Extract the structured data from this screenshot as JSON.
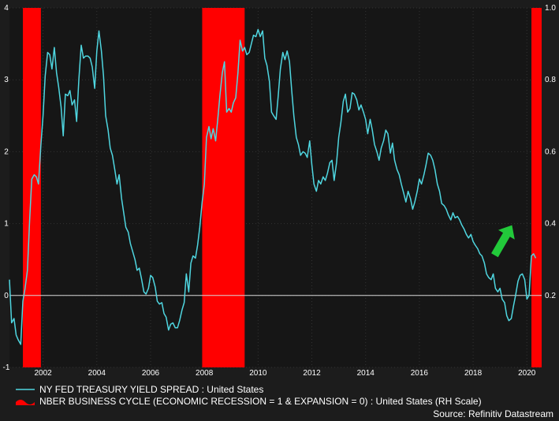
{
  "chart_data": {
    "type": "line",
    "x_range": [
      2000.75,
      2020.55
    ],
    "left_axis": {
      "ylim": [
        -1,
        4
      ],
      "ticks": [
        -1,
        0,
        1,
        2,
        3,
        4
      ],
      "tick_labels": [
        "-1",
        "0",
        "1",
        "2",
        "3",
        "4"
      ]
    },
    "right_axis": {
      "ylim": [
        0,
        1
      ],
      "ticks": [
        0.2,
        0.4,
        0.6,
        0.8,
        1.0
      ],
      "tick_labels": [
        "0.2",
        "0.4",
        "0.6",
        "0.8",
        "1.0"
      ]
    },
    "x_ticks": [
      2002,
      2004,
      2006,
      2008,
      2010,
      2012,
      2014,
      2016,
      2018,
      2020
    ],
    "x_tick_labels": [
      "2002",
      "2004",
      "2006",
      "2008",
      "2010",
      "2012",
      "2014",
      "2016",
      "2018",
      "2020"
    ],
    "zero_line": true,
    "grid": true,
    "series": [
      {
        "name": "NY FED TREASURY YIELD SPREAD : United States",
        "axis": "left",
        "color": "#4fd6e0",
        "points": [
          [
            2000.75,
            0.22
          ],
          [
            2000.83,
            -0.38
          ],
          [
            2000.92,
            -0.32
          ],
          [
            2001.0,
            -0.55
          ],
          [
            2001.08,
            -0.62
          ],
          [
            2001.17,
            -0.68
          ],
          [
            2001.25,
            -0.08
          ],
          [
            2001.33,
            0.1
          ],
          [
            2001.42,
            0.35
          ],
          [
            2001.5,
            1.05
          ],
          [
            2001.58,
            1.62
          ],
          [
            2001.67,
            1.68
          ],
          [
            2001.75,
            1.65
          ],
          [
            2001.83,
            1.55
          ],
          [
            2001.92,
            2.1
          ],
          [
            2002.0,
            2.5
          ],
          [
            2002.08,
            3.05
          ],
          [
            2002.17,
            3.38
          ],
          [
            2002.25,
            3.35
          ],
          [
            2002.33,
            3.15
          ],
          [
            2002.42,
            3.45
          ],
          [
            2002.5,
            3.1
          ],
          [
            2002.58,
            2.9
          ],
          [
            2002.67,
            2.62
          ],
          [
            2002.75,
            2.22
          ],
          [
            2002.83,
            2.8
          ],
          [
            2002.92,
            2.78
          ],
          [
            2003.0,
            2.85
          ],
          [
            2003.08,
            2.65
          ],
          [
            2003.17,
            2.72
          ],
          [
            2003.25,
            2.42
          ],
          [
            2003.33,
            3.0
          ],
          [
            2003.42,
            3.48
          ],
          [
            2003.5,
            3.3
          ],
          [
            2003.58,
            3.33
          ],
          [
            2003.67,
            3.33
          ],
          [
            2003.75,
            3.3
          ],
          [
            2003.83,
            3.18
          ],
          [
            2003.92,
            2.88
          ],
          [
            2004.0,
            3.4
          ],
          [
            2004.08,
            3.68
          ],
          [
            2004.17,
            3.4
          ],
          [
            2004.25,
            3.05
          ],
          [
            2004.33,
            2.5
          ],
          [
            2004.42,
            2.3
          ],
          [
            2004.5,
            2.05
          ],
          [
            2004.58,
            1.95
          ],
          [
            2004.67,
            1.75
          ],
          [
            2004.75,
            1.55
          ],
          [
            2004.83,
            1.68
          ],
          [
            2004.92,
            1.35
          ],
          [
            2005.0,
            1.15
          ],
          [
            2005.08,
            0.95
          ],
          [
            2005.17,
            0.88
          ],
          [
            2005.25,
            0.72
          ],
          [
            2005.33,
            0.62
          ],
          [
            2005.42,
            0.5
          ],
          [
            2005.5,
            0.35
          ],
          [
            2005.58,
            0.38
          ],
          [
            2005.67,
            0.22
          ],
          [
            2005.75,
            0.05
          ],
          [
            2005.83,
            0.02
          ],
          [
            2005.92,
            0.1
          ],
          [
            2006.0,
            0.28
          ],
          [
            2006.08,
            0.25
          ],
          [
            2006.17,
            0.12
          ],
          [
            2006.25,
            -0.08
          ],
          [
            2006.33,
            -0.12
          ],
          [
            2006.42,
            -0.1
          ],
          [
            2006.5,
            -0.25
          ],
          [
            2006.58,
            -0.3
          ],
          [
            2006.67,
            -0.48
          ],
          [
            2006.75,
            -0.4
          ],
          [
            2006.83,
            -0.38
          ],
          [
            2006.92,
            -0.45
          ],
          [
            2007.0,
            -0.45
          ],
          [
            2007.08,
            -0.35
          ],
          [
            2007.17,
            -0.2
          ],
          [
            2007.25,
            -0.1
          ],
          [
            2007.33,
            0.3
          ],
          [
            2007.42,
            0.05
          ],
          [
            2007.5,
            0.45
          ],
          [
            2007.58,
            0.55
          ],
          [
            2007.67,
            0.52
          ],
          [
            2007.75,
            0.7
          ],
          [
            2007.83,
            0.95
          ],
          [
            2007.92,
            1.3
          ],
          [
            2008.0,
            1.55
          ],
          [
            2008.08,
            2.2
          ],
          [
            2008.17,
            2.35
          ],
          [
            2008.25,
            2.18
          ],
          [
            2008.33,
            2.32
          ],
          [
            2008.42,
            2.15
          ],
          [
            2008.5,
            2.45
          ],
          [
            2008.58,
            2.78
          ],
          [
            2008.67,
            3.1
          ],
          [
            2008.75,
            3.25
          ],
          [
            2008.83,
            2.55
          ],
          [
            2008.92,
            2.6
          ],
          [
            2009.0,
            2.55
          ],
          [
            2009.08,
            2.68
          ],
          [
            2009.17,
            2.75
          ],
          [
            2009.25,
            3.1
          ],
          [
            2009.33,
            3.55
          ],
          [
            2009.42,
            3.4
          ],
          [
            2009.5,
            3.45
          ],
          [
            2009.58,
            3.35
          ],
          [
            2009.67,
            3.38
          ],
          [
            2009.75,
            3.5
          ],
          [
            2009.83,
            3.62
          ],
          [
            2009.92,
            3.6
          ],
          [
            2010.0,
            3.7
          ],
          [
            2010.08,
            3.6
          ],
          [
            2010.17,
            3.68
          ],
          [
            2010.25,
            3.3
          ],
          [
            2010.33,
            3.2
          ],
          [
            2010.42,
            2.98
          ],
          [
            2010.5,
            2.55
          ],
          [
            2010.58,
            2.5
          ],
          [
            2010.67,
            2.45
          ],
          [
            2010.75,
            2.78
          ],
          [
            2010.83,
            3.15
          ],
          [
            2010.92,
            3.38
          ],
          [
            2011.0,
            3.28
          ],
          [
            2011.08,
            3.4
          ],
          [
            2011.17,
            3.25
          ],
          [
            2011.25,
            2.85
          ],
          [
            2011.33,
            2.5
          ],
          [
            2011.42,
            2.2
          ],
          [
            2011.5,
            2.1
          ],
          [
            2011.58,
            1.95
          ],
          [
            2011.67,
            2.0
          ],
          [
            2011.75,
            1.98
          ],
          [
            2011.83,
            1.92
          ],
          [
            2011.92,
            2.15
          ],
          [
            2012.0,
            1.82
          ],
          [
            2012.08,
            1.55
          ],
          [
            2012.17,
            1.45
          ],
          [
            2012.25,
            1.6
          ],
          [
            2012.33,
            1.55
          ],
          [
            2012.42,
            1.65
          ],
          [
            2012.5,
            1.6
          ],
          [
            2012.58,
            1.7
          ],
          [
            2012.67,
            1.85
          ],
          [
            2012.75,
            1.88
          ],
          [
            2012.83,
            1.6
          ],
          [
            2012.92,
            1.85
          ],
          [
            2013.0,
            2.2
          ],
          [
            2013.08,
            2.4
          ],
          [
            2013.17,
            2.7
          ],
          [
            2013.25,
            2.8
          ],
          [
            2013.33,
            2.55
          ],
          [
            2013.42,
            2.6
          ],
          [
            2013.5,
            2.82
          ],
          [
            2013.58,
            2.8
          ],
          [
            2013.67,
            2.72
          ],
          [
            2013.75,
            2.58
          ],
          [
            2013.83,
            2.65
          ],
          [
            2013.92,
            2.55
          ],
          [
            2014.0,
            2.45
          ],
          [
            2014.08,
            2.25
          ],
          [
            2014.17,
            2.45
          ],
          [
            2014.25,
            2.3
          ],
          [
            2014.33,
            2.1
          ],
          [
            2014.42,
            2.0
          ],
          [
            2014.5,
            1.88
          ],
          [
            2014.58,
            2.05
          ],
          [
            2014.67,
            2.15
          ],
          [
            2014.75,
            2.3
          ],
          [
            2014.83,
            2.25
          ],
          [
            2014.92,
            1.98
          ],
          [
            2015.0,
            2.12
          ],
          [
            2015.08,
            1.88
          ],
          [
            2015.17,
            1.75
          ],
          [
            2015.25,
            1.68
          ],
          [
            2015.33,
            1.55
          ],
          [
            2015.42,
            1.42
          ],
          [
            2015.5,
            1.3
          ],
          [
            2015.58,
            1.45
          ],
          [
            2015.67,
            1.35
          ],
          [
            2015.75,
            1.2
          ],
          [
            2015.83,
            1.3
          ],
          [
            2015.92,
            1.45
          ],
          [
            2016.0,
            1.62
          ],
          [
            2016.08,
            1.55
          ],
          [
            2016.17,
            1.68
          ],
          [
            2016.25,
            1.82
          ],
          [
            2016.33,
            1.98
          ],
          [
            2016.42,
            1.95
          ],
          [
            2016.5,
            1.88
          ],
          [
            2016.58,
            1.75
          ],
          [
            2016.67,
            1.55
          ],
          [
            2016.75,
            1.45
          ],
          [
            2016.83,
            1.28
          ],
          [
            2016.92,
            1.25
          ],
          [
            2017.0,
            1.2
          ],
          [
            2017.08,
            1.12
          ],
          [
            2017.17,
            1.05
          ],
          [
            2017.25,
            1.15
          ],
          [
            2017.33,
            1.08
          ],
          [
            2017.42,
            1.1
          ],
          [
            2017.5,
            1.05
          ],
          [
            2017.58,
            0.98
          ],
          [
            2017.67,
            0.92
          ],
          [
            2017.75,
            0.85
          ],
          [
            2017.83,
            0.8
          ],
          [
            2017.92,
            0.85
          ],
          [
            2018.0,
            0.75
          ],
          [
            2018.08,
            0.7
          ],
          [
            2018.17,
            0.65
          ],
          [
            2018.25,
            0.58
          ],
          [
            2018.33,
            0.55
          ],
          [
            2018.42,
            0.45
          ],
          [
            2018.5,
            0.3
          ],
          [
            2018.58,
            0.25
          ],
          [
            2018.67,
            0.22
          ],
          [
            2018.75,
            0.3
          ],
          [
            2018.83,
            0.1
          ],
          [
            2018.92,
            0.05
          ],
          [
            2019.0,
            0.1
          ],
          [
            2019.08,
            -0.05
          ],
          [
            2019.17,
            -0.1
          ],
          [
            2019.25,
            -0.28
          ],
          [
            2019.33,
            -0.35
          ],
          [
            2019.42,
            -0.32
          ],
          [
            2019.5,
            -0.15
          ],
          [
            2019.58,
            0.0
          ],
          [
            2019.67,
            0.2
          ],
          [
            2019.75,
            0.28
          ],
          [
            2019.83,
            0.3
          ],
          [
            2019.92,
            0.22
          ],
          [
            2020.0,
            -0.05
          ],
          [
            2020.08,
            0.0
          ],
          [
            2020.17,
            0.55
          ],
          [
            2020.25,
            0.58
          ],
          [
            2020.33,
            0.52
          ]
        ]
      },
      {
        "name": "NBER BUSINESS CYCLE (ECONOMIC RECESSION = 1 & EXPANSION = 0) : United States (RH Scale)",
        "axis": "right",
        "color": "#ff0000",
        "type": "area",
        "periods": [
          {
            "start": 2001.25,
            "end": 2001.92,
            "value": 1
          },
          {
            "start": 2007.92,
            "end": 2009.5,
            "value": 1
          },
          {
            "start": 2020.17,
            "end": 2020.55,
            "value": 1
          }
        ]
      }
    ],
    "annotations": [
      {
        "type": "arrow",
        "color": "#22c93a",
        "shape": "upward-arrow",
        "at": [
          2019.8,
          0.4
        ],
        "direction": "up-right"
      }
    ],
    "legend": {
      "placement": "bottom-left",
      "entries": [
        "NY FED TREASURY YIELD SPREAD : United States",
        "NBER BUSINESS CYCLE (ECONOMIC RECESSION = 1 & EXPANSION = 0) : United States (RH Scale)"
      ]
    },
    "source": "Source: Refinitiv Datastream"
  }
}
